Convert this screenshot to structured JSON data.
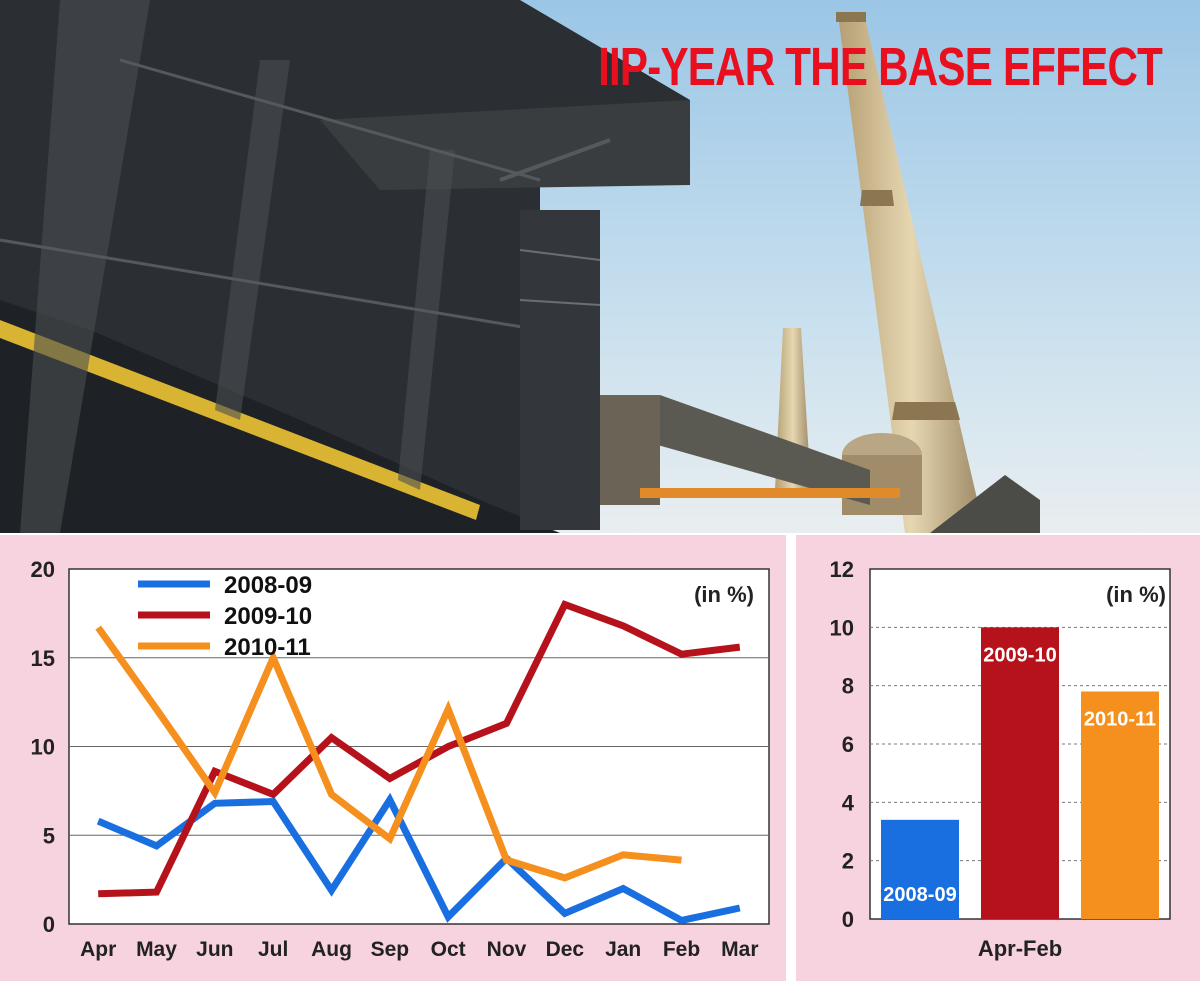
{
  "headline": "IIP-YEAR THE BASE EFFECT",
  "colors": {
    "headline": "#e8101e",
    "panel_background": "#f7d2df",
    "series_2008_09": "#1a6fe0",
    "series_2009_10": "#b5121b",
    "series_2010_11": "#f5901e"
  },
  "chart_data": [
    {
      "type": "line",
      "unit_note": "(in %)",
      "categories": [
        "Apr",
        "May",
        "Jun",
        "Jul",
        "Aug",
        "Sep",
        "Oct",
        "Nov",
        "Dec",
        "Jan",
        "Feb",
        "Mar"
      ],
      "ylim": [
        0,
        20
      ],
      "yticks": [
        0,
        5,
        10,
        15,
        20
      ],
      "grid": true,
      "legend_position": "top-left",
      "series": [
        {
          "name": "2008-09",
          "color": "#1a6fe0",
          "values": [
            5.8,
            4.4,
            6.8,
            6.9,
            1.9,
            7.0,
            0.4,
            3.7,
            0.6,
            2.0,
            0.2,
            0.9
          ]
        },
        {
          "name": "2009-10",
          "color": "#b5121b",
          "values": [
            1.7,
            1.8,
            8.6,
            7.3,
            10.5,
            8.2,
            10.0,
            11.3,
            18.0,
            16.8,
            15.2,
            15.6
          ]
        },
        {
          "name": "2010-11",
          "color": "#f5901e",
          "values": [
            16.7,
            12.1,
            7.4,
            15.0,
            7.3,
            4.8,
            12.1,
            3.6,
            2.6,
            3.9,
            3.6,
            null
          ]
        }
      ]
    },
    {
      "type": "bar",
      "unit_note": "(in %)",
      "categories": [
        "2008-09",
        "2009-10",
        "2010-11"
      ],
      "values": [
        3.4,
        10.0,
        7.8
      ],
      "colors": [
        "#1a6fe0",
        "#b5121b",
        "#f5901e"
      ],
      "xlabel": "Apr-Feb",
      "ylim": [
        0,
        12
      ],
      "yticks": [
        0,
        2,
        4,
        6,
        8,
        10,
        12
      ],
      "grid": true
    }
  ]
}
